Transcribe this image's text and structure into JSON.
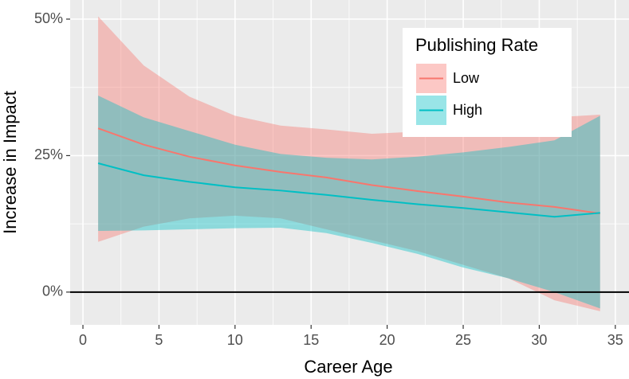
{
  "chart_data": {
    "type": "ribbon-line",
    "x_label": "Career Age",
    "y_label": "Increase in Impact",
    "legend_title": "Publishing Rate",
    "legend": "top-right",
    "x": [
      1,
      4,
      7,
      10,
      13,
      16,
      19,
      22,
      25,
      28,
      31,
      34
    ],
    "series": [
      {
        "name": "Low",
        "color": "#F8766D",
        "values": [
          30,
          27,
          24.8,
          23.2,
          22,
          21,
          19.6,
          18.5,
          17.5,
          16.4,
          15.6,
          14.4
        ],
        "lower": [
          9.2,
          12,
          13.5,
          14,
          13.5,
          11.5,
          9.5,
          7.5,
          5,
          2.5,
          -1.5,
          -3.5
        ],
        "upper": [
          50.5,
          41.5,
          35.8,
          32.3,
          30.5,
          29.8,
          29,
          29.4,
          30,
          31,
          32,
          32.5
        ]
      },
      {
        "name": "High",
        "color": "#00BFC4",
        "values": [
          23.6,
          21.4,
          20.2,
          19.2,
          18.6,
          17.8,
          16.9,
          16.1,
          15.4,
          14.6,
          13.8,
          14.5
        ],
        "lower": [
          11.2,
          11.3,
          11.5,
          11.7,
          11.8,
          10.8,
          9,
          7,
          4.5,
          2.5,
          0,
          -3
        ],
        "upper": [
          36,
          32,
          29.5,
          27,
          25.3,
          24.6,
          24.3,
          24.8,
          25.6,
          26.6,
          27.8,
          32.3
        ]
      }
    ],
    "xlim": [
      -0.84,
      35.9
    ],
    "xticks": [
      0,
      5,
      10,
      15,
      20,
      25,
      30,
      35
    ],
    "ylim": [
      -6,
      53.5
    ],
    "yticks": [
      {
        "value": 0,
        "label": "0%"
      },
      {
        "value": 25,
        "label": "25%"
      },
      {
        "value": 50,
        "label": "50%"
      }
    ],
    "hline": 0,
    "grid": true
  }
}
